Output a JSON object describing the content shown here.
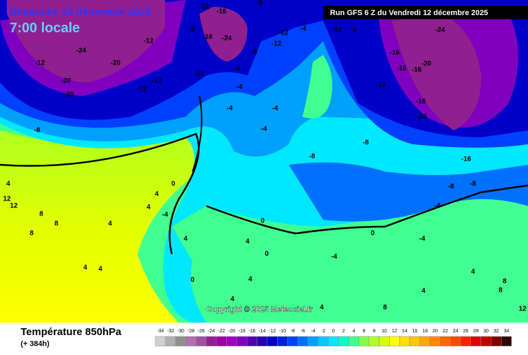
{
  "header": {
    "date": "Dimanche 28 décembre 2025",
    "time": "7:00 locale",
    "run": "Run GFS 6 Z du Vendredi 12 décembre 2025",
    "copyright": "Copyright © 2025 Meteociel.fr"
  },
  "footer": {
    "title": "Température 850hPa",
    "lead": "(+ 384h)"
  },
  "scale": {
    "values": [
      "-34",
      "-32",
      "-30",
      "-28",
      "-26",
      "-24",
      "-22",
      "-20",
      "-18",
      "-16",
      "-14",
      "-12",
      "-10",
      "-8",
      "-6",
      "-4",
      "-2",
      "0",
      "2",
      "4",
      "6",
      "8",
      "10",
      "12",
      "14",
      "16",
      "18",
      "20",
      "22",
      "24",
      "26",
      "28",
      "30",
      "32",
      "34"
    ],
    "colors": [
      "#d0d0d0",
      "#b0b0b0",
      "#909090",
      "#b070b0",
      "#a050a0",
      "#902090",
      "#a000a0",
      "#a000c0",
      "#8000c0",
      "#5000b0",
      "#2800a8",
      "#0000c8",
      "#0020e0",
      "#0040ff",
      "#0070ff",
      "#00a0ff",
      "#00c8ff",
      "#00e8ff",
      "#00ffc8",
      "#40ff90",
      "#80ff50",
      "#b0ff20",
      "#d8ff00",
      "#ffff00",
      "#ffe000",
      "#ffc800",
      "#ffa800",
      "#ff8800",
      "#ff6800",
      "#ff4800",
      "#ff2000",
      "#e00000",
      "#c00000",
      "#800000",
      "#300000"
    ]
  },
  "map": {
    "labels": [
      "-12",
      "-16",
      "-8",
      "-8",
      "-16",
      "-24",
      "-8",
      "-12",
      "-12",
      "-4",
      "-12",
      "-4",
      "-24",
      "-16",
      "-20",
      "-16",
      "-16",
      "-12",
      "-16",
      "-16",
      "-8",
      "-16",
      "-24",
      "-12",
      "-20",
      "-12",
      "-20",
      "-20",
      "-12",
      "-12",
      "-12",
      "-4",
      "-4",
      "-4",
      "-4",
      "-4",
      "-8",
      "-8",
      "0",
      "4",
      "-4",
      "4",
      "0",
      "4",
      "0",
      "4",
      "0",
      "-4",
      "0",
      "-4",
      "-4",
      "-8",
      "-8",
      "4",
      "8",
      "8",
      "4",
      "12",
      "12",
      "8",
      "4",
      "4",
      "4",
      "4",
      "4",
      "8",
      "4",
      "4",
      "8",
      "8",
      "12"
    ]
  }
}
